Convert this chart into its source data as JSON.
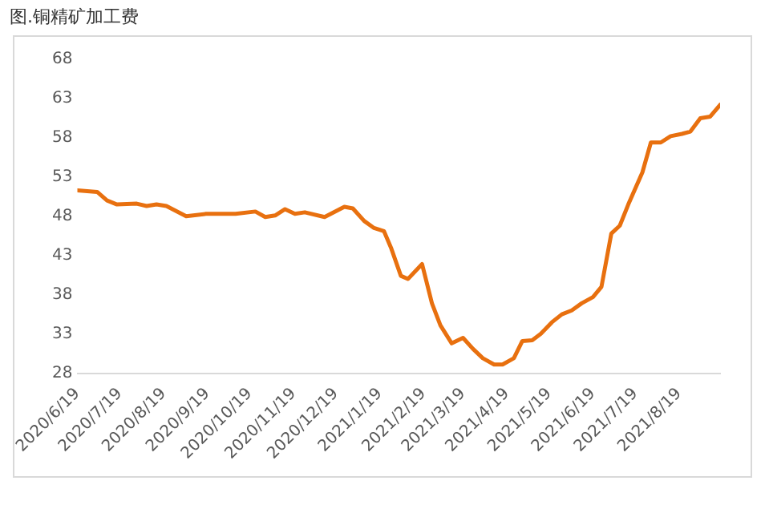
{
  "chart_data": {
    "type": "line",
    "title": "图.铜精矿加工费",
    "grid": false,
    "legend": false,
    "marker": "none",
    "line_style": "solid",
    "x": [
      "2020-06-19",
      "2020-07-03",
      "2020-07-10",
      "2020-07-17",
      "2020-07-31",
      "2020-08-07",
      "2020-08-14",
      "2020-08-21",
      "2020-09-04",
      "2020-09-18",
      "2020-10-09",
      "2020-10-23",
      "2020-10-30",
      "2020-11-06",
      "2020-11-13",
      "2020-11-20",
      "2020-11-27",
      "2020-12-11",
      "2020-12-25",
      "2020-12-31",
      "2021-01-08",
      "2021-01-15",
      "2021-01-22",
      "2021-01-27",
      "2021-02-03",
      "2021-02-08",
      "2021-02-18",
      "2021-02-25",
      "2021-03-03",
      "2021-03-11",
      "2021-03-19",
      "2021-03-26",
      "2021-04-02",
      "2021-04-10",
      "2021-04-16",
      "2021-04-24",
      "2021-04-30",
      "2021-05-07",
      "2021-05-13",
      "2021-05-21",
      "2021-05-28",
      "2021-06-04",
      "2021-06-11",
      "2021-06-19",
      "2021-06-25",
      "2021-07-02",
      "2021-07-08",
      "2021-07-14",
      "2021-07-24",
      "2021-07-30",
      "2021-08-06",
      "2021-08-13",
      "2021-08-21",
      "2021-08-27",
      "2021-09-03",
      "2021-09-10",
      "2021-09-17"
    ],
    "series": [
      {
        "color": "#e8700f",
        "values": [
          51.3,
          51.1,
          50.0,
          49.5,
          49.6,
          49.3,
          49.5,
          49.3,
          48.0,
          48.3,
          48.3,
          48.6,
          47.9,
          48.1,
          48.9,
          48.3,
          48.5,
          47.9,
          49.2,
          49.0,
          47.4,
          46.5,
          46.1,
          44.0,
          40.4,
          40.0,
          41.9,
          36.9,
          34.1,
          31.8,
          32.5,
          31.1,
          29.9,
          29.1,
          29.1,
          29.9,
          32.1,
          32.2,
          33.0,
          34.5,
          35.5,
          36.0,
          36.9,
          37.7,
          39.0,
          45.8,
          46.8,
          49.5,
          53.6,
          57.4,
          57.4,
          58.2,
          58.5,
          58.8,
          60.5,
          60.7,
          62.2
        ]
      }
    ],
    "xlim": [
      "2020-06-19",
      "2021-09-17"
    ],
    "xticks": [
      {
        "value": "2020-06-19",
        "label": "2020/6/19"
      },
      {
        "value": "2020-07-19",
        "label": "2020/7/19"
      },
      {
        "value": "2020-08-19",
        "label": "2020/8/19"
      },
      {
        "value": "2020-09-19",
        "label": "2020/9/19"
      },
      {
        "value": "2020-10-19",
        "label": "2020/10/19"
      },
      {
        "value": "2020-11-19",
        "label": "2020/11/19"
      },
      {
        "value": "2020-12-19",
        "label": "2020/12/19"
      },
      {
        "value": "2021-01-19",
        "label": "2021/1/19"
      },
      {
        "value": "2021-02-19",
        "label": "2021/2/19"
      },
      {
        "value": "2021-03-19",
        "label": "2021/3/19"
      },
      {
        "value": "2021-04-19",
        "label": "2021/4/19"
      },
      {
        "value": "2021-05-19",
        "label": "2021/5/19"
      },
      {
        "value": "2021-06-19",
        "label": "2021/6/19"
      },
      {
        "value": "2021-07-19",
        "label": "2021/7/19"
      },
      {
        "value": "2021-08-19",
        "label": "2021/8/19"
      }
    ],
    "ylim": [
      28,
      68
    ],
    "yticks": [
      28,
      33,
      38,
      43,
      48,
      53,
      58,
      63,
      68
    ]
  }
}
